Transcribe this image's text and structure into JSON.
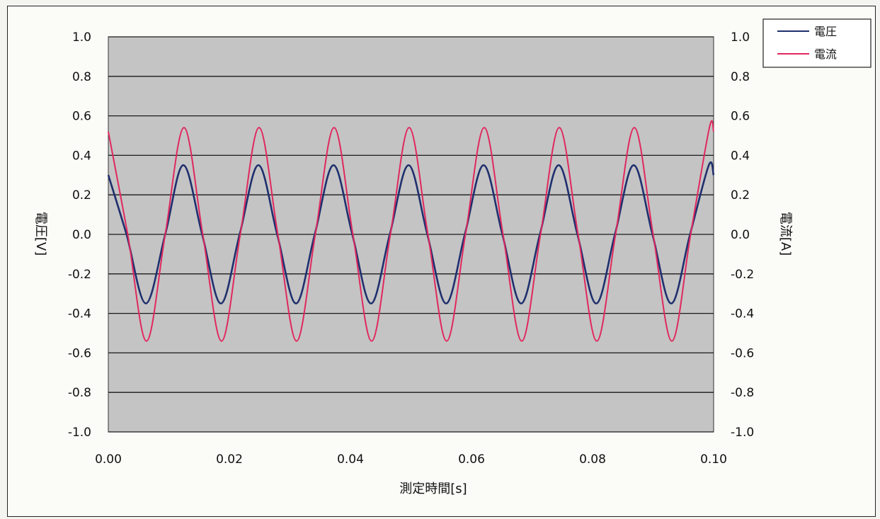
{
  "chart_data": {
    "type": "line",
    "title": "",
    "xlabel": "測定時間[s]",
    "ylabel_left": "電圧[V]",
    "ylabel_right": "電流[A]",
    "xlim": [
      0.0,
      0.1
    ],
    "ylim_left": [
      -1.0,
      1.0
    ],
    "ylim_right": [
      -1.0,
      1.0
    ],
    "x_tick_labels": [
      "0.00",
      "0.02",
      "0.04",
      "0.06",
      "0.08",
      "0.10"
    ],
    "y_tick_labels": [
      "1.0",
      "0.8",
      "0.6",
      "0.4",
      "0.2",
      "0.0",
      "-0.2",
      "-0.4",
      "-0.6",
      "-0.8",
      "-1.0"
    ],
    "grid": true,
    "legend_position": "top-right",
    "colors": {
      "plot_background": "#c4c4c4",
      "gridline": "#1a1a1a"
    },
    "series": [
      {
        "name": "電圧",
        "axis": "left",
        "color": "#1f2f6e",
        "values": [
          [
            0.0,
            0.3
          ],
          [
            0.003,
            0.0
          ],
          [
            0.0062,
            -0.35
          ],
          [
            0.0094,
            0.0
          ],
          [
            0.0124,
            0.35
          ],
          [
            0.0155,
            0.0
          ],
          [
            0.0186,
            -0.35
          ],
          [
            0.0217,
            0.0
          ],
          [
            0.0248,
            0.35
          ],
          [
            0.0279,
            0.0
          ],
          [
            0.031,
            -0.35
          ],
          [
            0.0341,
            0.0
          ],
          [
            0.0372,
            0.35
          ],
          [
            0.0403,
            0.0
          ],
          [
            0.0434,
            -0.35
          ],
          [
            0.0465,
            0.0
          ],
          [
            0.0496,
            0.35
          ],
          [
            0.0527,
            0.0
          ],
          [
            0.0558,
            -0.35
          ],
          [
            0.0589,
            0.0
          ],
          [
            0.062,
            0.35
          ],
          [
            0.0651,
            0.0
          ],
          [
            0.0682,
            -0.35
          ],
          [
            0.0713,
            0.0
          ],
          [
            0.0744,
            0.35
          ],
          [
            0.0775,
            0.0
          ],
          [
            0.0806,
            -0.35
          ],
          [
            0.0837,
            0.0
          ],
          [
            0.0868,
            0.35
          ],
          [
            0.0899,
            0.0
          ],
          [
            0.093,
            -0.35
          ],
          [
            0.0961,
            0.0
          ],
          [
            0.0992,
            0.35
          ],
          [
            0.1,
            0.3
          ]
        ]
      },
      {
        "name": "電流",
        "axis": "right",
        "color": "#e0285e",
        "values": [
          [
            0.0,
            0.52
          ],
          [
            0.0032,
            0.0
          ],
          [
            0.0063,
            -0.54
          ],
          [
            0.0094,
            0.0
          ],
          [
            0.0125,
            0.54
          ],
          [
            0.0156,
            0.0
          ],
          [
            0.0187,
            -0.54
          ],
          [
            0.0218,
            0.0
          ],
          [
            0.0249,
            0.54
          ],
          [
            0.028,
            0.0
          ],
          [
            0.0311,
            -0.54
          ],
          [
            0.0342,
            0.0
          ],
          [
            0.0373,
            0.54
          ],
          [
            0.0404,
            0.0
          ],
          [
            0.0435,
            -0.54
          ],
          [
            0.0466,
            0.0
          ],
          [
            0.0497,
            0.54
          ],
          [
            0.0528,
            0.0
          ],
          [
            0.0559,
            -0.54
          ],
          [
            0.059,
            0.0
          ],
          [
            0.0621,
            0.54
          ],
          [
            0.0652,
            0.0
          ],
          [
            0.0683,
            -0.54
          ],
          [
            0.0714,
            0.0
          ],
          [
            0.0745,
            0.54
          ],
          [
            0.0776,
            0.0
          ],
          [
            0.0807,
            -0.54
          ],
          [
            0.0838,
            0.0
          ],
          [
            0.0869,
            0.54
          ],
          [
            0.09,
            0.0
          ],
          [
            0.0931,
            -0.54
          ],
          [
            0.0962,
            0.0
          ],
          [
            0.0993,
            0.54
          ],
          [
            0.1,
            0.52
          ]
        ]
      }
    ]
  }
}
